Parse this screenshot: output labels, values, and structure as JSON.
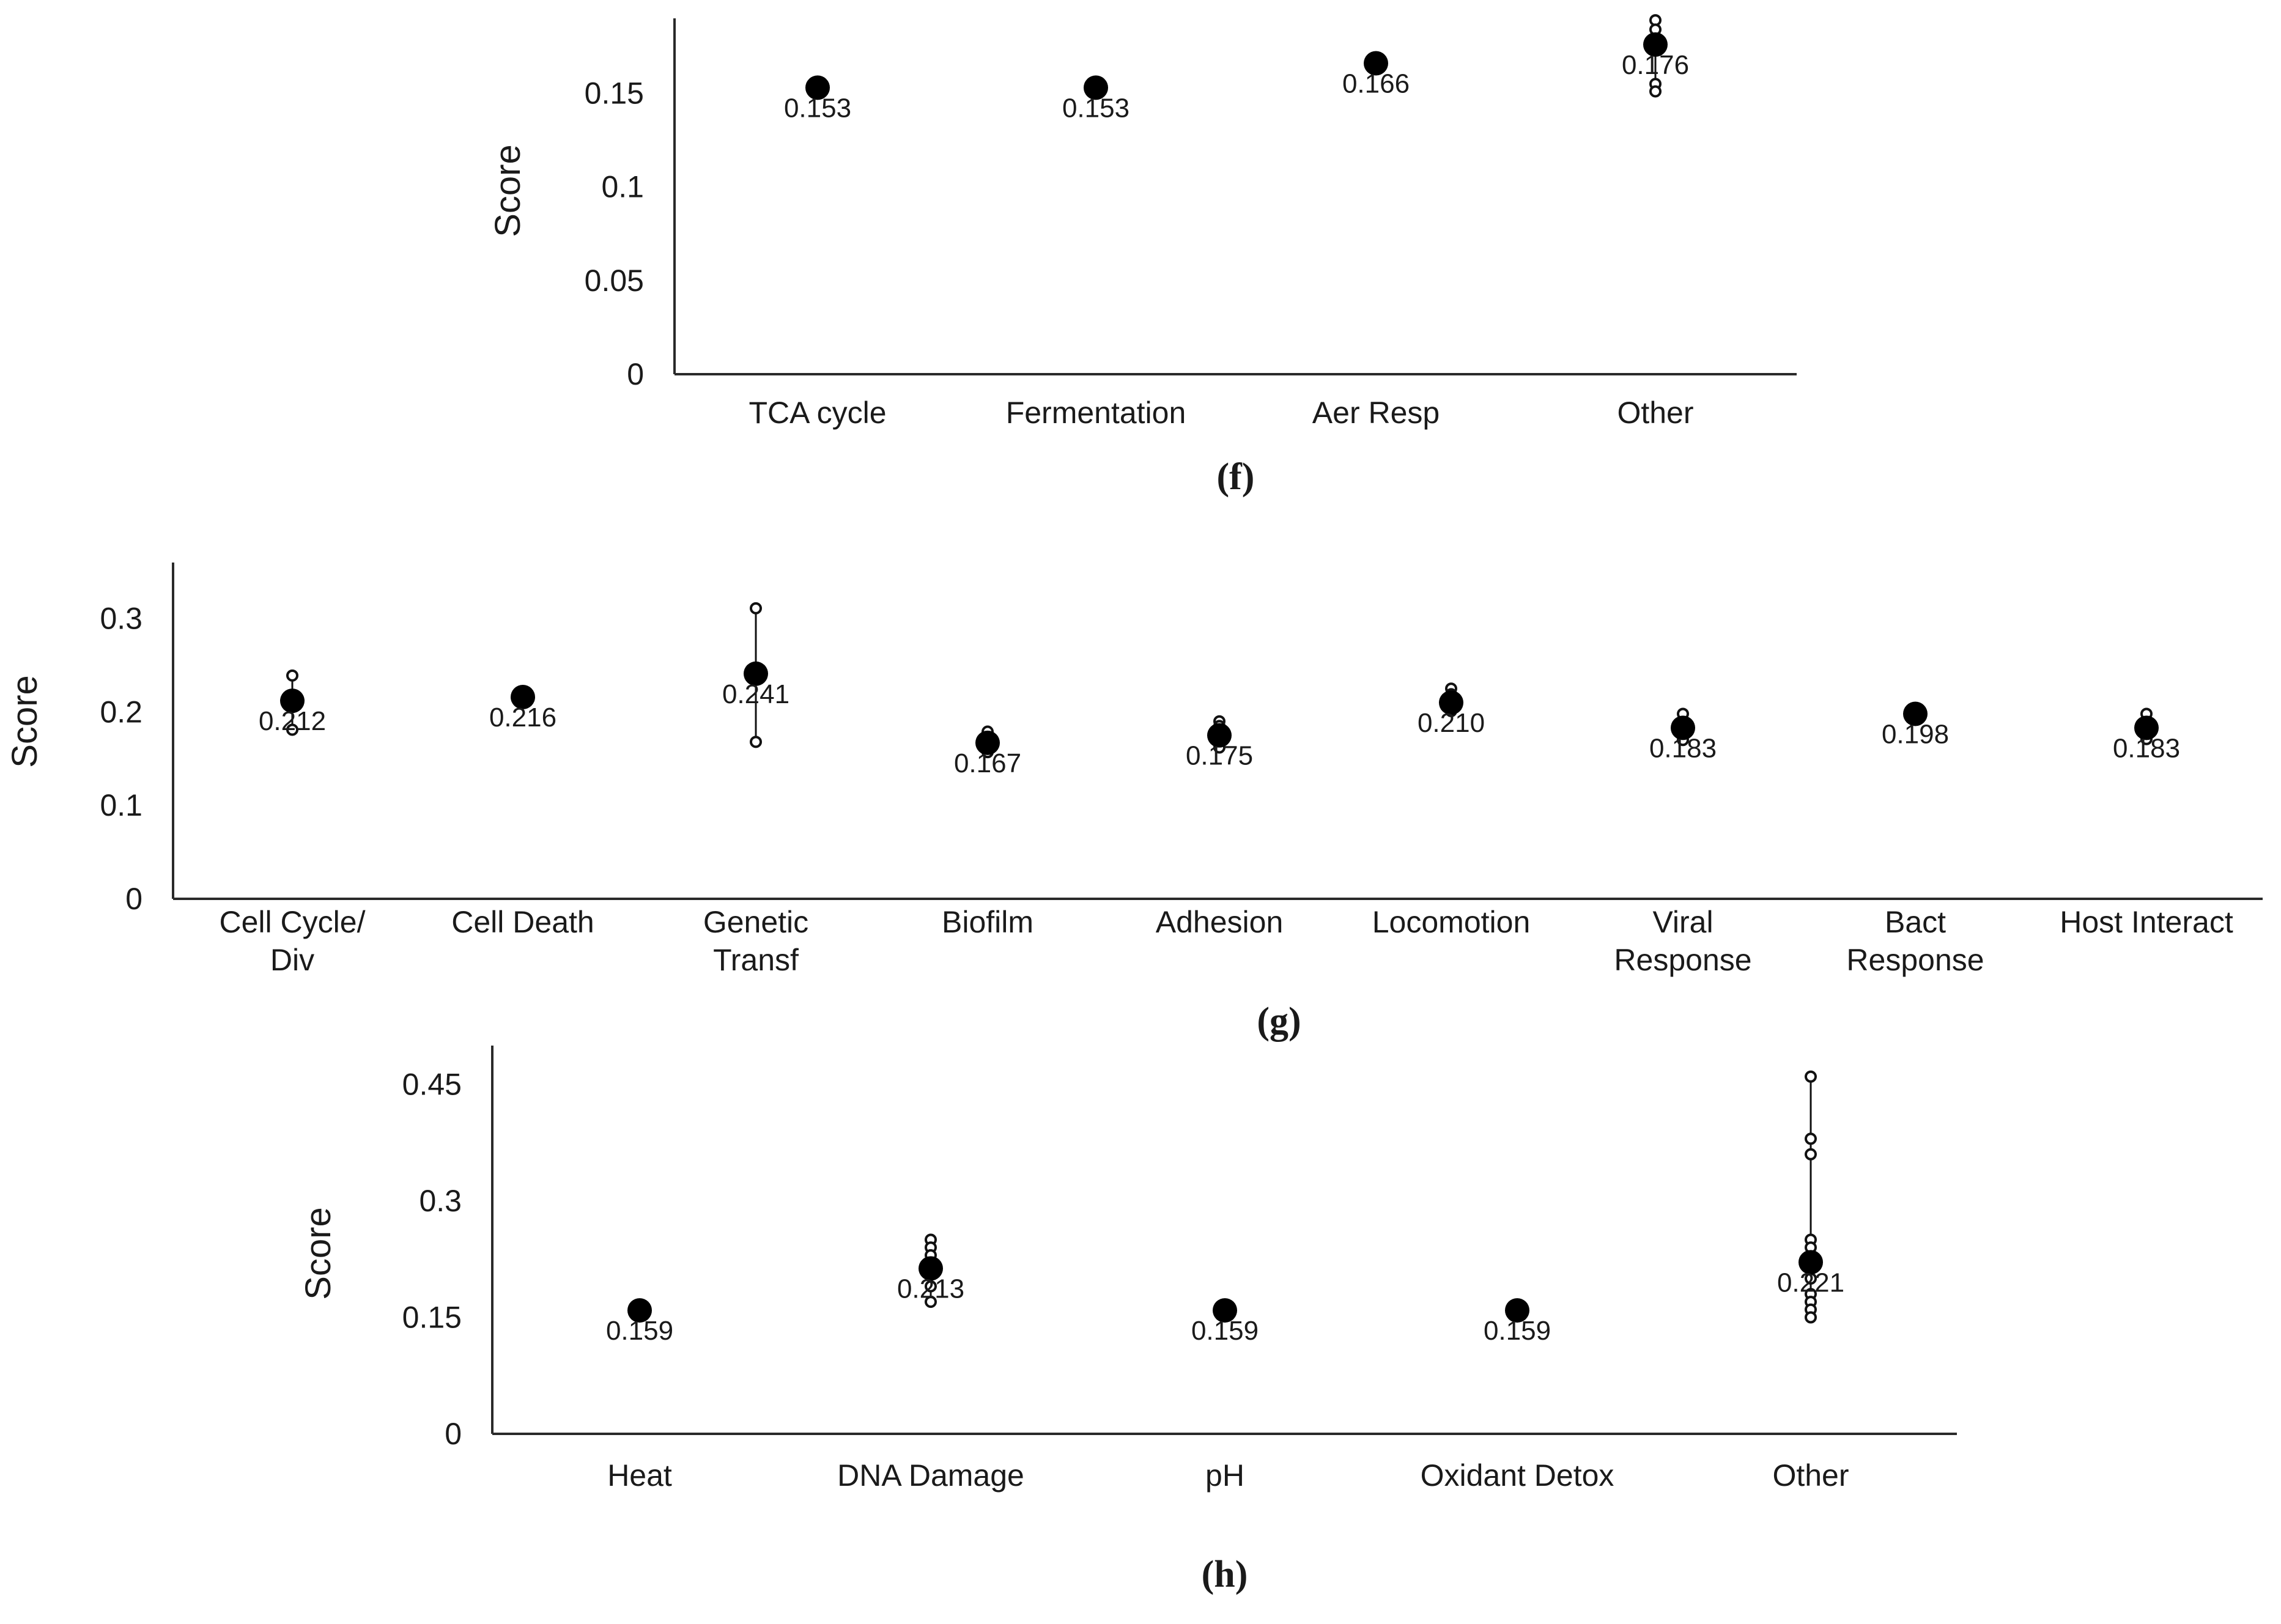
{
  "chart_data": [
    {
      "type": "scatter",
      "panel": "(f)",
      "ylabel": "Score",
      "ylim": [
        0,
        0.19
      ],
      "yticks": [
        {
          "value": 0,
          "label": "0"
        },
        {
          "value": 0.05,
          "label": "0.05"
        },
        {
          "value": 0.1,
          "label": "0.1"
        },
        {
          "value": 0.15,
          "label": "0.15"
        }
      ],
      "categories": [
        {
          "label": [
            "TCA cycle"
          ],
          "mean": 0.153,
          "label_text": "0.153",
          "points": []
        },
        {
          "label": [
            "Fermentation"
          ],
          "mean": 0.153,
          "label_text": "0.153",
          "points": []
        },
        {
          "label": [
            "Aer Resp"
          ],
          "mean": 0.166,
          "label_text": "0.166",
          "points": []
        },
        {
          "label": [
            "Other"
          ],
          "mean": 0.176,
          "label_text": "0.176",
          "points": [
            0.189,
            0.184,
            0.155,
            0.151
          ]
        }
      ]
    },
    {
      "type": "scatter",
      "panel": "(g)",
      "ylabel": "Score",
      "ylim": [
        0,
        0.36
      ],
      "yticks": [
        {
          "value": 0,
          "label": "0"
        },
        {
          "value": 0.1,
          "label": "0.1"
        },
        {
          "value": 0.2,
          "label": "0.2"
        },
        {
          "value": 0.3,
          "label": "0.3"
        }
      ],
      "categories": [
        {
          "label": [
            "Cell Cycle/",
            "Div"
          ],
          "mean": 0.212,
          "label_text": "0.212",
          "points": [
            0.239,
            0.181
          ]
        },
        {
          "label": [
            "Cell Death"
          ],
          "mean": 0.216,
          "label_text": "0.216",
          "points": []
        },
        {
          "label": [
            "Genetic",
            "Transf"
          ],
          "mean": 0.241,
          "label_text": "0.241",
          "points": [
            0.311,
            0.168
          ]
        },
        {
          "label": [
            "Biofilm"
          ],
          "mean": 0.167,
          "label_text": "0.167",
          "points": [
            0.179,
            0.157
          ]
        },
        {
          "label": [
            "Adhesion"
          ],
          "mean": 0.175,
          "label_text": "0.175",
          "points": [
            0.19,
            0.185,
            0.162
          ]
        },
        {
          "label": [
            "Locomotion"
          ],
          "mean": 0.21,
          "label_text": "0.210",
          "points": [
            0.225,
            0.219,
            0.201
          ]
        },
        {
          "label": [
            "Viral",
            "Response"
          ],
          "mean": 0.183,
          "label_text": "0.183",
          "points": [
            0.198,
            0.17
          ]
        },
        {
          "label": [
            "Bact",
            "Response"
          ],
          "mean": 0.198,
          "label_text": "0.198",
          "points": []
        },
        {
          "label": [
            "Host Interact"
          ],
          "mean": 0.183,
          "label_text": "0.183",
          "points": [
            0.198,
            0.171
          ]
        }
      ]
    },
    {
      "type": "scatter",
      "panel": "(h)",
      "ylabel": "Score",
      "ylim": [
        0,
        0.5
      ],
      "yticks": [
        {
          "value": 0,
          "label": "0"
        },
        {
          "value": 0.15,
          "label": "0.15"
        },
        {
          "value": 0.3,
          "label": "0.3"
        },
        {
          "value": 0.45,
          "label": "0.45"
        }
      ],
      "categories": [
        {
          "label": [
            "Heat"
          ],
          "mean": 0.159,
          "label_text": "0.159",
          "points": []
        },
        {
          "label": [
            "DNA Damage"
          ],
          "mean": 0.213,
          "label_text": "0.213",
          "points": [
            0.25,
            0.24,
            0.23,
            0.19,
            0.17
          ]
        },
        {
          "label": [
            "pH"
          ],
          "mean": 0.159,
          "label_text": "0.159",
          "points": []
        },
        {
          "label": [
            "Oxidant Detox"
          ],
          "mean": 0.159,
          "label_text": "0.159",
          "points": []
        },
        {
          "label": [
            "Other"
          ],
          "mean": 0.221,
          "label_text": "0.221",
          "points": [
            0.46,
            0.38,
            0.36,
            0.25,
            0.24,
            0.2,
            0.18,
            0.17,
            0.16,
            0.15
          ]
        }
      ]
    }
  ]
}
